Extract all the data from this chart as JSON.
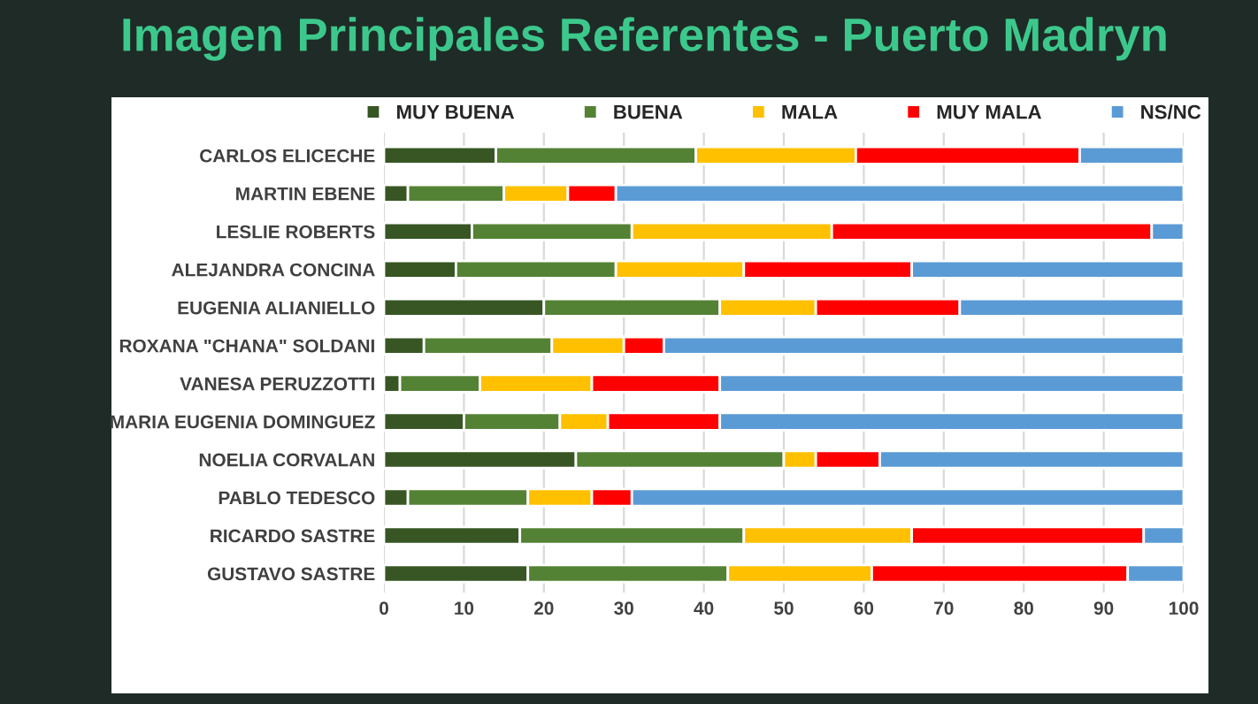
{
  "chart_data": {
    "type": "bar",
    "orientation": "horizontal",
    "stacked": true,
    "title": "Imagen Principales Referentes - Puerto Madryn",
    "categories": [
      "CARLOS ELICECHE",
      "MARTIN EBENE",
      "LESLIE ROBERTS",
      "ALEJANDRA CONCINA",
      "EUGENIA ALIANIELLO",
      "ROXANA \"CHANA\" SOLDANI",
      "VANESA PERUZZOTTI",
      "MARIA EUGENIA DOMINGUEZ",
      "NOELIA CORVALAN",
      "PABLO TEDESCO",
      "RICARDO SASTRE",
      "GUSTAVO SASTRE"
    ],
    "series": [
      {
        "name": "MUY BUENA",
        "color": "#375623",
        "values": [
          14,
          3,
          11,
          9,
          20,
          5,
          2,
          10,
          24,
          3,
          17,
          18
        ]
      },
      {
        "name": "BUENA",
        "color": "#548235",
        "values": [
          25,
          12,
          20,
          20,
          22,
          16,
          10,
          12,
          26,
          15,
          28,
          25
        ]
      },
      {
        "name": "MALA",
        "color": "#ffc000",
        "values": [
          20,
          8,
          25,
          16,
          12,
          9,
          14,
          6,
          4,
          8,
          21,
          18
        ]
      },
      {
        "name": "MUY MALA",
        "color": "#ff0000",
        "values": [
          28,
          6,
          40,
          21,
          18,
          5,
          16,
          14,
          8,
          5,
          29,
          32
        ]
      },
      {
        "name": "NS/NC",
        "color": "#5b9bd5",
        "values": [
          13,
          71,
          4,
          34,
          28,
          65,
          58,
          58,
          38,
          69,
          5,
          7
        ]
      }
    ],
    "xlim": [
      0,
      100
    ],
    "xticks": [
      0,
      10,
      20,
      30,
      40,
      50,
      60,
      70,
      80,
      90,
      100
    ],
    "grid": "x",
    "legend": "top"
  }
}
